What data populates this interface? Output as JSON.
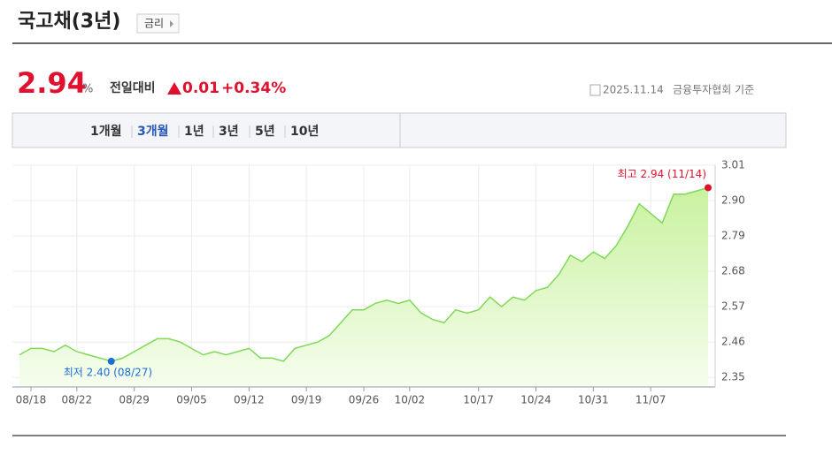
{
  "header": {
    "title": "국고채(3년)",
    "badge": "금리",
    "price": "2.94",
    "unit": "%",
    "change_label": "전일대비",
    "change": "0.01",
    "change_pct": "+0.34%",
    "date": "2025.11.14",
    "source": "금융투자협회 기준"
  },
  "tabs": {
    "items": [
      "1개월",
      "3개월",
      "1년",
      "3년",
      "5년",
      "10년"
    ],
    "active": 1
  },
  "chart_data": {
    "type": "area",
    "color": "#7fd957",
    "grid": true,
    "annotations": {
      "high": "최고 2.94 (11/14)",
      "low": "최저 2.40 (08/27)"
    },
    "categories": [
      null,
      "08/18",
      null,
      null,
      null,
      "08/22",
      null,
      null,
      null,
      null,
      "08/29",
      null,
      null,
      null,
      null,
      "09/05",
      null,
      null,
      null,
      null,
      "09/12",
      null,
      null,
      null,
      null,
      "09/19",
      null,
      null,
      null,
      null,
      "09/26",
      null,
      null,
      null,
      "10/02",
      null,
      null,
      null,
      null,
      null,
      "10/17",
      null,
      null,
      null,
      null,
      "10/24",
      null,
      null,
      null,
      null,
      "10/31",
      null,
      null,
      null,
      null,
      "11/07",
      null,
      null,
      null,
      null,
      null
    ],
    "values": [
      2.42,
      2.44,
      2.44,
      2.43,
      2.45,
      2.43,
      2.42,
      2.41,
      2.4,
      2.41,
      2.43,
      2.45,
      2.47,
      2.47,
      2.46,
      2.44,
      2.42,
      2.43,
      2.42,
      2.43,
      2.44,
      2.41,
      2.41,
      2.4,
      2.44,
      2.45,
      2.46,
      2.48,
      2.52,
      2.56,
      2.56,
      2.58,
      2.59,
      2.58,
      2.59,
      2.55,
      2.53,
      2.52,
      2.56,
      2.55,
      2.56,
      2.6,
      2.57,
      2.6,
      2.59,
      2.62,
      2.63,
      2.67,
      2.73,
      2.71,
      2.74,
      2.72,
      2.76,
      2.82,
      2.89,
      2.86,
      2.83,
      2.92,
      2.92,
      2.93,
      2.94
    ],
    "ylim": [
      2.32,
      3.01
    ],
    "yticks": [
      3.01,
      {
        "value": 2.9,
        "label": "2.90"
      },
      2.79,
      2.68,
      2.57,
      2.46,
      2.35
    ]
  }
}
